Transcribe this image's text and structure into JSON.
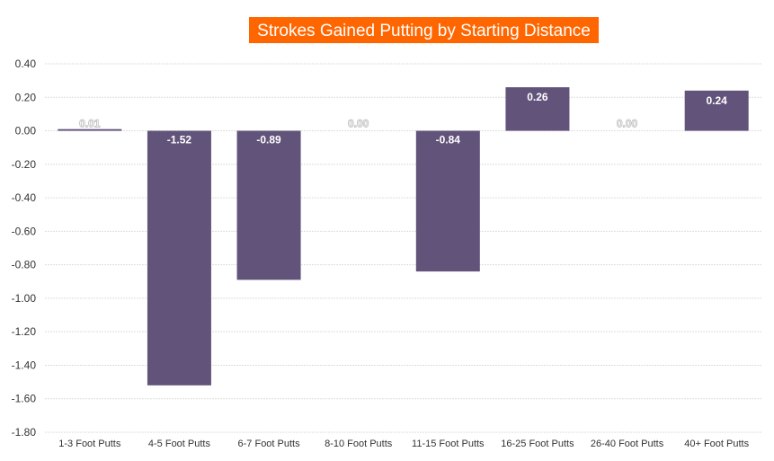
{
  "chart_data": {
    "type": "bar",
    "title": "Strokes Gained Putting by Starting Distance",
    "categories": [
      "1-3 Foot Putts",
      "4-5 Foot Putts",
      "6-7 Foot Putts",
      "8-10 Foot Putts",
      "11-15 Foot Putts",
      "16-25 Foot Putts",
      "26-40 Foot Putts",
      "40+ Foot Putts"
    ],
    "values": [
      0.01,
      -1.52,
      -0.89,
      0.0,
      -0.84,
      0.26,
      0.0,
      0.24
    ],
    "data_labels": [
      "0.01",
      "-1.52",
      "-0.89",
      "0.00",
      "-0.84",
      "0.26",
      "0.00",
      "0.24"
    ],
    "xlabel": "",
    "ylabel": "",
    "ylim": [
      -1.8,
      0.4
    ],
    "yticks": [
      "0.40",
      "0.20",
      "0.00",
      "-0.20",
      "-0.40",
      "-0.60",
      "-0.80",
      "-1.00",
      "-1.20",
      "-1.40",
      "-1.60",
      "-1.80"
    ],
    "grid": true,
    "legend": "none",
    "colors": {
      "bar": "#62537a",
      "title_bg": "#ff6600",
      "title_text": "#ffffff"
    }
  }
}
